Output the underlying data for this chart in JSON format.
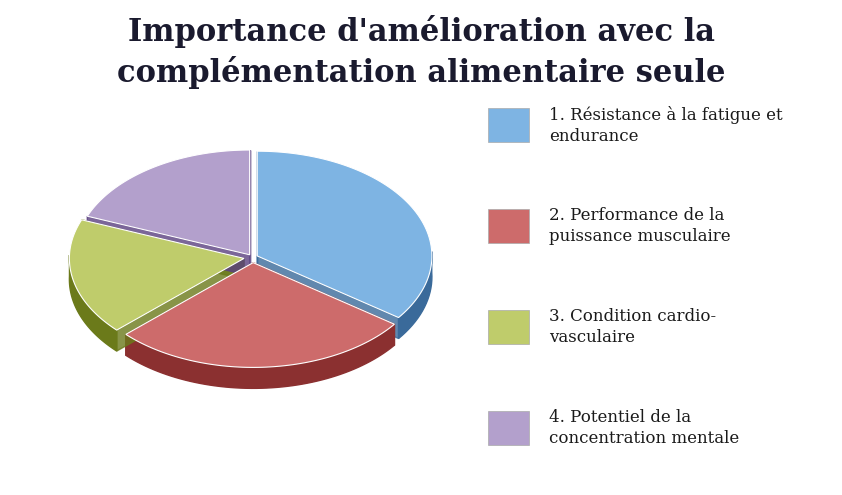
{
  "title": "Importance d'amélioration avec la\ncomplémentation alimentaire seule",
  "slices": [
    35,
    28,
    18,
    19
  ],
  "colors": [
    "#7EB4E3",
    "#CD6B6B",
    "#BFCC6B",
    "#B3A0CC"
  ],
  "dark_colors": [
    "#3A6A9A",
    "#8B3030",
    "#6B7A1A",
    "#5A4080"
  ],
  "labels": [
    "1. Résistance à la fatigue et\nendurance",
    "2. Performance de la\npuissance musculaire",
    "3. Condition cardio-\nvasculaire",
    "4. Potentiel de la\nconcentration mentale"
  ],
  "explode": [
    0.03,
    0.05,
    0.05,
    0.03
  ],
  "startangle": 90,
  "title_fontsize": 22,
  "legend_fontsize": 12,
  "depth": 0.12
}
